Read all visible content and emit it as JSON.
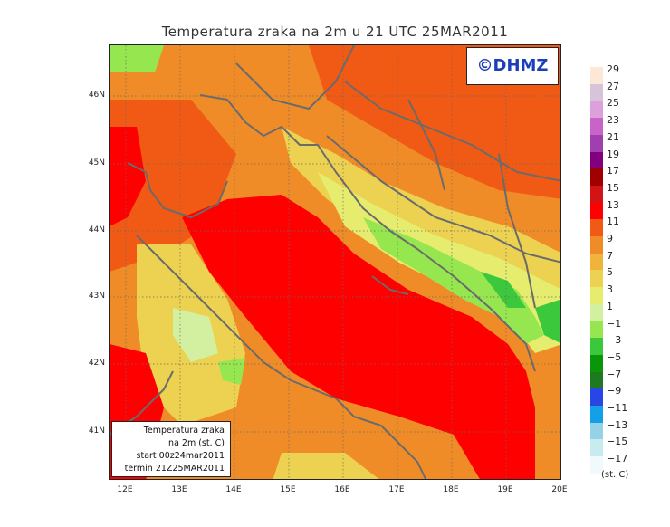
{
  "title": "Temperatura zraka na 2m u 21 UTC 25MAR2011",
  "copyright": "©DHMZ",
  "info_box": {
    "lines": [
      "Temperatura zraka",
      "na 2m (st. C)",
      "start 00z24mar2011",
      "termin 21Z25MAR2011"
    ]
  },
  "lat_labels": [
    "46N",
    "45N",
    "44N",
    "43N",
    "42N",
    "41N"
  ],
  "lon_labels": [
    "12E",
    "13E",
    "14E",
    "15E",
    "16E",
    "17E",
    "18E",
    "19E",
    "20E"
  ],
  "legend": {
    "unit": "(st. C)",
    "labels": [
      "29",
      "27",
      "25",
      "23",
      "21",
      "19",
      "17",
      "15",
      "13",
      "11",
      "9",
      "7",
      "5",
      "3",
      "1",
      "−1",
      "−3",
      "−5",
      "−7",
      "−9",
      "−11",
      "−13",
      "−15",
      "−17"
    ],
    "colors": [
      "#fde8d8",
      "#d8c4d8",
      "#dca0dc",
      "#c864c8",
      "#a040b0",
      "#800080",
      "#a00000",
      "#d21414",
      "#ff0000",
      "#f05a14",
      "#f08c28",
      "#f0b43c",
      "#ecd250",
      "#e6ec6e",
      "#d2f0a0",
      "#96e650",
      "#3cc83c",
      "#0a960a",
      "#1e7a1e",
      "#2846e6",
      "#14a0e6",
      "#96d2e6",
      "#c8ebf0",
      "#f0fafc"
    ]
  }
}
